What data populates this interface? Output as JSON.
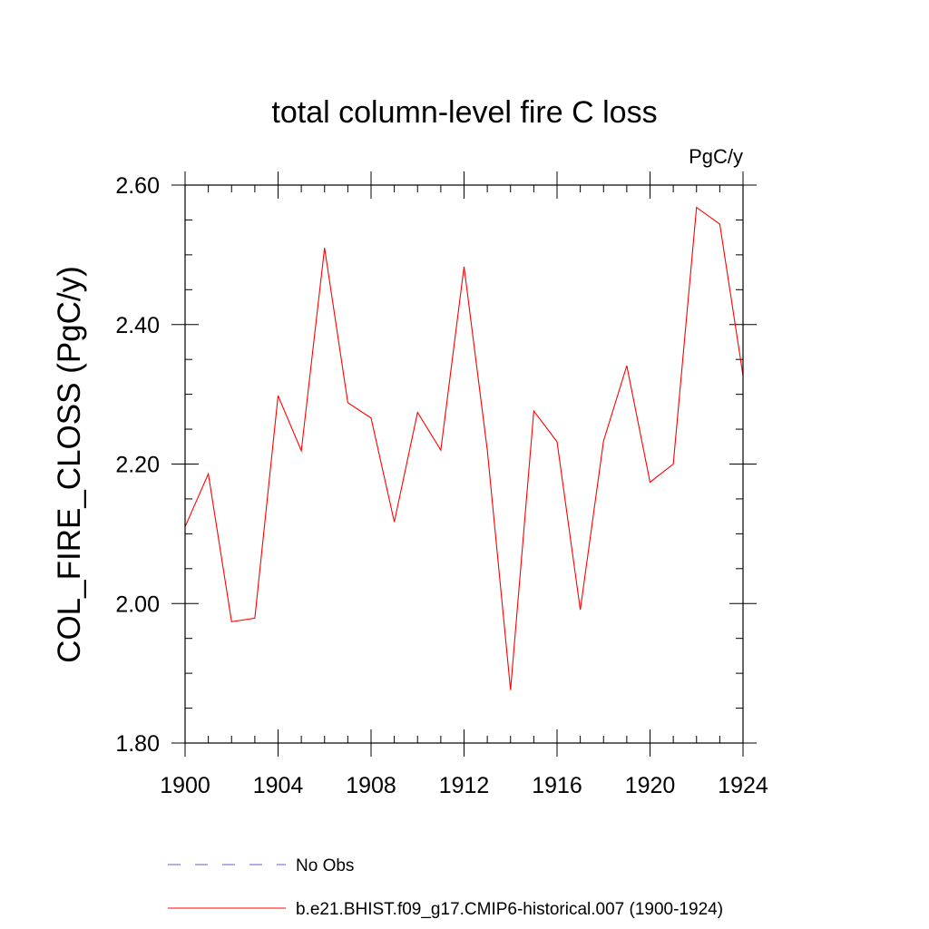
{
  "chart_data": {
    "type": "line",
    "title": "total column-level fire C loss",
    "units_label": "PgC/y",
    "ylabel": "COL_FIRE_CLOSS  (PgC/y)",
    "xlabel": "",
    "xlim": [
      1900,
      1924
    ],
    "ylim": [
      1.8,
      2.6
    ],
    "x_ticks": [
      1900,
      1904,
      1908,
      1912,
      1916,
      1920,
      1924
    ],
    "x_tick_labels": [
      "1900",
      "1904",
      "1908",
      "1912",
      "1916",
      "1920",
      "1924"
    ],
    "y_ticks": [
      1.8,
      2.0,
      2.2,
      2.4,
      2.6
    ],
    "y_tick_labels": [
      "1.80",
      "2.00",
      "2.20",
      "2.40",
      "2.60"
    ],
    "x_minor_step": 1,
    "y_minor_step": 0.05,
    "grid": false,
    "legend_position": "bottom-center",
    "series": [
      {
        "name": "b.e21.BHIST.f09_g17.CMIP6-historical.007 (1900-1924)",
        "color": "#ff0000",
        "style": "solid",
        "x": [
          1900,
          1901,
          1902,
          1903,
          1904,
          1905,
          1906,
          1907,
          1908,
          1909,
          1910,
          1911,
          1912,
          1913,
          1914,
          1915,
          1916,
          1917,
          1918,
          1919,
          1920,
          1921,
          1922,
          1923,
          1924
        ],
        "values": [
          2.11,
          2.186,
          1.974,
          1.979,
          2.298,
          2.219,
          2.51,
          2.288,
          2.266,
          2.117,
          2.274,
          2.22,
          2.483,
          2.22,
          1.876,
          2.276,
          2.232,
          1.991,
          2.233,
          2.341,
          2.174,
          2.2,
          2.568,
          2.544,
          2.327
        ]
      }
    ],
    "legend": [
      {
        "label": "No Obs",
        "color": "#6a5acd",
        "style": "dashed"
      },
      {
        "label": "b.e21.BHIST.f09_g17.CMIP6-historical.007 (1900-1924)",
        "color": "#ff0000",
        "style": "solid"
      }
    ]
  }
}
